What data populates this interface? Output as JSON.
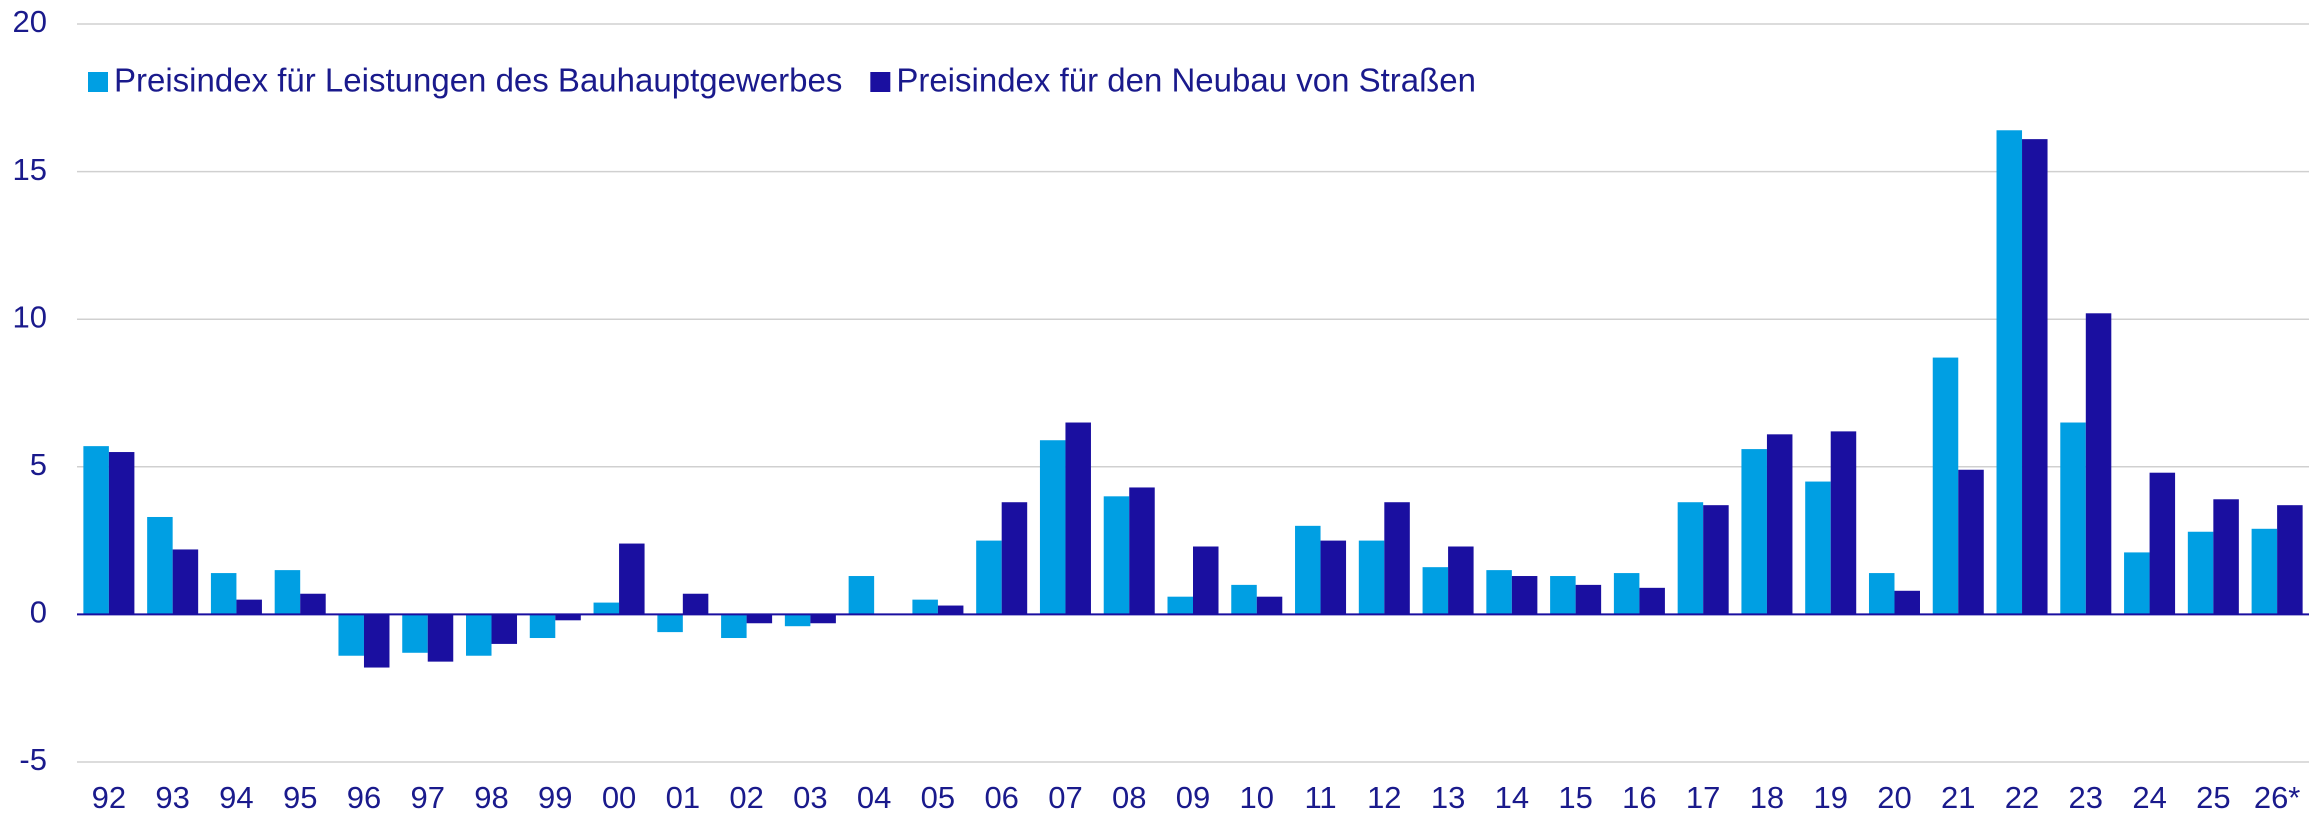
{
  "chart_data": {
    "type": "bar",
    "categories": [
      "92",
      "93",
      "94",
      "95",
      "96",
      "97",
      "98",
      "99",
      "00",
      "01",
      "02",
      "03",
      "04",
      "05",
      "06",
      "07",
      "08",
      "09",
      "10",
      "11",
      "12",
      "13",
      "14",
      "15",
      "16",
      "17",
      "18",
      "19",
      "20",
      "21",
      "22",
      "23",
      "24",
      "25",
      "26*"
    ],
    "series": [
      {
        "name": "Preisindex für Leistungen des Bauhauptgewerbes",
        "color": "#009fe3",
        "values": [
          5.7,
          3.3,
          1.4,
          1.5,
          -1.4,
          -1.3,
          -1.4,
          -0.8,
          0.4,
          -0.6,
          -0.8,
          -0.4,
          1.3,
          0.5,
          2.5,
          5.9,
          4.0,
          0.6,
          1.0,
          3.0,
          2.5,
          1.6,
          1.5,
          1.3,
          1.4,
          3.8,
          5.6,
          4.5,
          1.4,
          8.7,
          16.4,
          6.5,
          2.1,
          2.8,
          2.9
        ]
      },
      {
        "name": "Preisindex für den Neubau von Straßen",
        "color": "#1a0fa0",
        "values": [
          5.5,
          2.2,
          0.5,
          0.7,
          -1.8,
          -1.6,
          -1.0,
          -0.2,
          2.4,
          0.7,
          -0.3,
          -0.3,
          0,
          0.3,
          3.8,
          6.5,
          4.3,
          2.3,
          0.6,
          2.5,
          3.8,
          2.3,
          1.3,
          1.0,
          0.9,
          3.7,
          6.1,
          6.2,
          0.8,
          4.9,
          16.1,
          10.2,
          4.8,
          3.9,
          3.7
        ]
      }
    ],
    "ylim": [
      -5,
      20
    ],
    "yticks": [
      -5,
      0,
      5,
      10,
      15,
      20
    ],
    "grid": true,
    "legend": "top-left"
  }
}
